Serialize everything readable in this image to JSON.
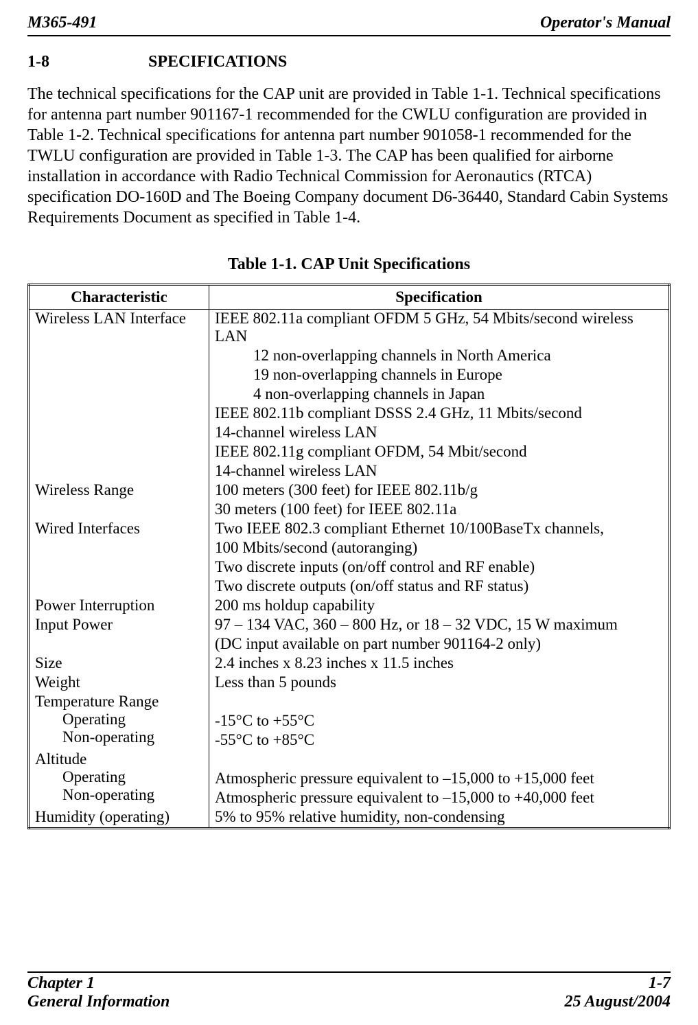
{
  "header": {
    "left": "M365-491",
    "right": "Operator's Manual"
  },
  "section": {
    "number": "1-8",
    "title": "SPECIFICATIONS"
  },
  "paragraph": "The technical specifications for the CAP unit are provided in Table 1-1.  Technical specifications for antenna part number 901167-1 recommended for the CWLU configuration are provided in Table 1-2.  Technical specifications for antenna part number 901058-1 recommended for the TWLU configuration are provided in Table 1-3.  The CAP has been qualified for airborne installation in accordance with Radio Technical Commission for Aeronautics (RTCA) specification DO-160D and The Boeing Company document D6-36440, Standard Cabin Systems Requirements Document as specified in Table 1-4.",
  "table": {
    "caption": "Table 1-1.  CAP Unit Specifications",
    "columns": [
      "Characteristic",
      "Specification"
    ],
    "rows": [
      {
        "char": "Wireless LAN Interface",
        "spec_lines": [
          {
            "text": "IEEE 802.11a compliant OFDM 5 GHz, 54 Mbits/second wireless LAN",
            "indent": false
          },
          {
            "text": "12 non-overlapping channels in North America",
            "indent": true
          },
          {
            "text": "19 non-overlapping channels in Europe",
            "indent": true
          },
          {
            "text": "4 non-overlapping channels in Japan",
            "indent": true
          },
          {
            "text": "IEEE 802.11b compliant DSSS 2.4 GHz, 11 Mbits/second",
            "indent": false
          },
          {
            "text": "14-channel wireless LAN",
            "indent": false
          },
          {
            "text": "IEEE 802.11g compliant OFDM, 54 Mbit/second",
            "indent": false
          },
          {
            "text": "14-channel wireless LAN",
            "indent": false
          }
        ]
      },
      {
        "char": "Wireless Range",
        "spec_lines": [
          {
            "text": "100 meters (300 feet) for IEEE 802.11b/g",
            "indent": false
          },
          {
            "text": "30 meters (100 feet) for IEEE 802.11a",
            "indent": false
          }
        ]
      },
      {
        "char": "Wired Interfaces",
        "spec_lines": [
          {
            "text": "Two IEEE 802.3 compliant Ethernet 10/100BaseTx channels,",
            "indent": false
          },
          {
            "text": "100 Mbits/second (autoranging)",
            "indent": false
          },
          {
            "text": "Two discrete inputs (on/off control and RF enable)",
            "indent": false
          },
          {
            "text": "Two discrete outputs (on/off status and RF status)",
            "indent": false
          }
        ]
      },
      {
        "char": "Power Interruption",
        "spec_lines": [
          {
            "text": "200 ms holdup capability",
            "indent": false
          }
        ]
      },
      {
        "char": "Input Power",
        "spec_lines": [
          {
            "text": "97 – 134 VAC, 360 – 800 Hz, or 18 – 32 VDC, 15 W maximum",
            "indent": false
          },
          {
            "text": "(DC input available on part number 901164-2 only)",
            "indent": false
          }
        ]
      },
      {
        "char": "Size",
        "spec_lines": [
          {
            "text": "2.4 inches x 8.23 inches x 11.5 inches",
            "indent": false
          }
        ]
      },
      {
        "char": "Weight",
        "spec_lines": [
          {
            "text": "Less than 5 pounds",
            "indent": false
          }
        ]
      },
      {
        "char": "Temperature Range",
        "sub": [
          "Operating",
          "Non-operating"
        ],
        "spec_lines": [
          {
            "text": "",
            "indent": false
          },
          {
            "text": "-15°C to +55°C",
            "indent": false
          },
          {
            "text": "-55°C to +85°C",
            "indent": false
          }
        ]
      },
      {
        "char": "Altitude",
        "sub": [
          "Operating",
          "Non-operating"
        ],
        "spec_lines": [
          {
            "text": "",
            "indent": false
          },
          {
            "text": "Atmospheric pressure equivalent to –15,000 to +15,000 feet",
            "indent": false
          },
          {
            "text": "Atmospheric pressure equivalent to –15,000 to +40,000 feet",
            "indent": false
          }
        ]
      },
      {
        "char": "Humidity (operating)",
        "spec_lines": [
          {
            "text": "5% to 95% relative humidity, non-condensing",
            "indent": false
          }
        ]
      }
    ]
  },
  "footer": {
    "left1": "Chapter 1",
    "right1": "1-7",
    "left2": "General Information",
    "right2": "25 August/2004"
  }
}
